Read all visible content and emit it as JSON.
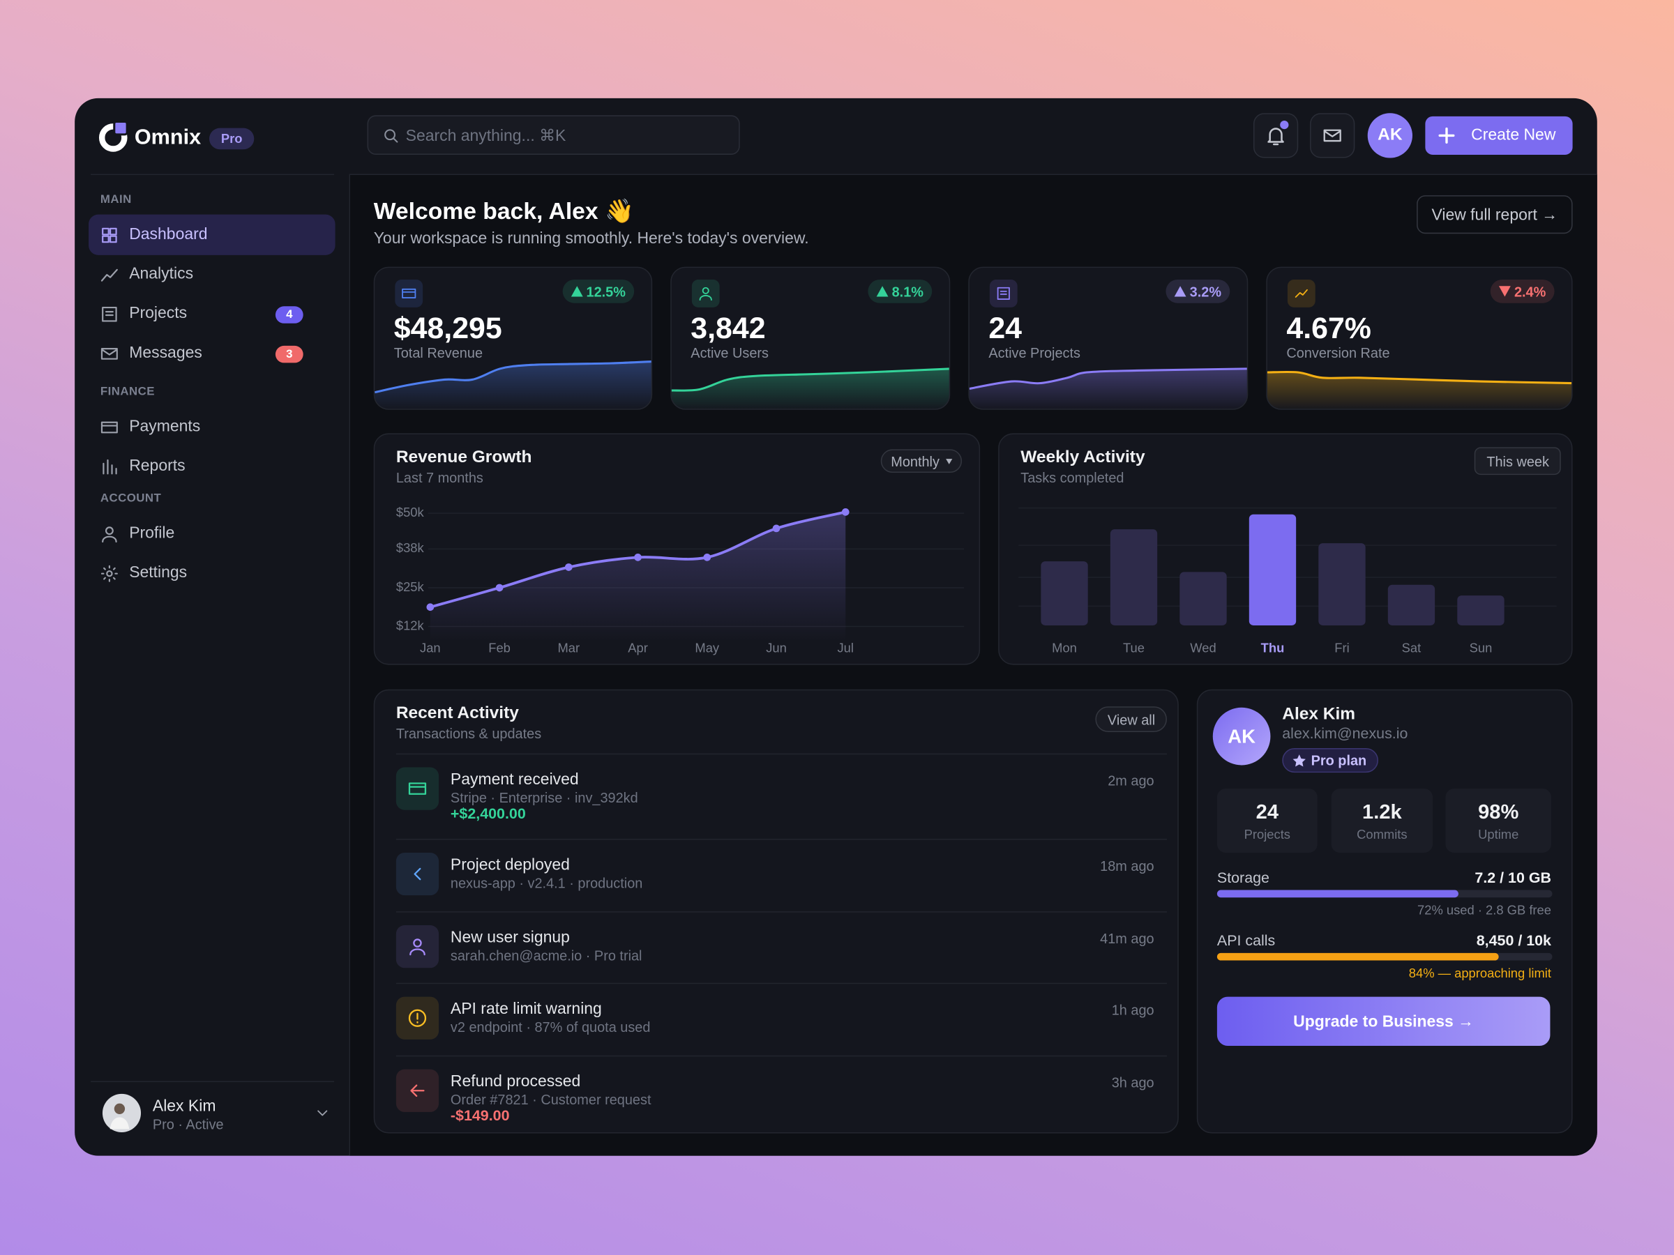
{
  "sidebar": {
    "brand": "Omnix",
    "plan_badge": "Pro",
    "sections": [
      {
        "title": "MAIN",
        "items": [
          {
            "label": "Dashboard",
            "active": true
          },
          {
            "label": "Analytics"
          },
          {
            "label": "Projects",
            "badge": "4",
            "badge_color": "#6d5ef0"
          },
          {
            "label": "Messages",
            "badge": "3",
            "badge_color": "#f06a6a"
          }
        ]
      },
      {
        "title": "FINANCE",
        "items": [
          {
            "label": "Payments"
          },
          {
            "label": "Reports"
          }
        ]
      },
      {
        "title": "ACCOUNT",
        "items": [
          {
            "label": "Profile"
          },
          {
            "label": "Settings"
          }
        ]
      }
    ],
    "user": {
      "name": "Alex Kim",
      "status": "Pro · Active"
    }
  },
  "topbar": {
    "search_placeholder": "Search anything... ⌘K",
    "avatar": "AK",
    "create_button": "Create New"
  },
  "header": {
    "title": "Welcome back, Alex 👋",
    "subtitle": "Your workspace is running smoothly. Here's today's overview.",
    "report_button": "View full report →"
  },
  "kpis": [
    {
      "value": "$48,295",
      "label": "Total Revenue",
      "change": "12.5%",
      "trend": "up",
      "color": "#4f7ff0",
      "change_color": "#34d399"
    },
    {
      "value": "3,842",
      "label": "Active Users",
      "change": "8.1%",
      "trend": "up",
      "color": "#34d399",
      "change_color": "#34d399"
    },
    {
      "value": "24",
      "label": "Active Projects",
      "change": "3.2%",
      "trend": "up",
      "color": "#8b7cf6",
      "change_color": "#a99cf7"
    },
    {
      "value": "4.67%",
      "label": "Conversion Rate",
      "change": "2.4%",
      "trend": "down",
      "color": "#f5b014",
      "change_color": "#f87171"
    }
  ],
  "chart_data": [
    {
      "type": "line",
      "title": "Revenue Growth",
      "subtitle": "Last 7 months",
      "period": "Monthly",
      "categories": [
        "Jan",
        "Feb",
        "Mar",
        "Apr",
        "May",
        "Jun",
        "Jul"
      ],
      "values": [
        18.5,
        25,
        31.9,
        35.2,
        35.2,
        44.9,
        50.4
      ],
      "color": "#8b7cf6",
      "ylim": [
        7,
        60
      ],
      "yticks": [
        {
          "value": 12,
          "label": "$12k"
        },
        {
          "value": 25,
          "label": "$25k"
        },
        {
          "value": 38,
          "label": "$38k"
        },
        {
          "value": 50,
          "label": "$50k"
        }
      ],
      "grid": true
    },
    {
      "type": "bar",
      "title": "Weekly Activity",
      "subtitle": "Tasks completed",
      "period": "This week",
      "categories": [
        "Mon",
        "Tue",
        "Wed",
        "Thu",
        "Fri",
        "Sat",
        "Sun"
      ],
      "values": [
        60,
        90,
        50,
        104,
        77,
        38,
        28
      ],
      "ylim": [
        0,
        110
      ],
      "color": "#2e2b4a",
      "highlight": "Thu",
      "highlight_color": "#7c6cf0"
    }
  ],
  "recent_activity": {
    "title": "Recent Activity",
    "subtitle": "Transactions & updates",
    "view_all": "View all",
    "items": [
      {
        "title": "Payment received",
        "detail": "Stripe · Enterprise · inv_392kd",
        "time": "2m ago",
        "amount": "+$2,400.00",
        "amount_color": "#34d399",
        "color": "#34d399"
      },
      {
        "title": "Project deployed",
        "detail": "nexus-app · v2.4.1 · production",
        "time": "18m ago",
        "color": "#60a5fa"
      },
      {
        "title": "New user signup",
        "detail": "sarah.chen@acme.io · Pro trial",
        "time": "41m ago",
        "color": "#a78bfa"
      },
      {
        "title": "API rate limit warning",
        "detail": "v2 endpoint · 87% of quota used",
        "time": "1h ago",
        "color": "#fbbf24"
      },
      {
        "title": "Refund processed",
        "detail": "Order #7821 · Customer request",
        "time": "3h ago",
        "amount": "-$149.00",
        "amount_color": "#f87171",
        "color": "#f87171"
      }
    ]
  },
  "profile": {
    "avatar": "AK",
    "name": "Alex Kim",
    "email": "alex.kim@nexus.io",
    "plan": "Pro plan",
    "stats": [
      {
        "value": "24",
        "label": "Projects"
      },
      {
        "value": "1.2k",
        "label": "Commits"
      },
      {
        "value": "98%",
        "label": "Uptime"
      }
    ],
    "usage": [
      {
        "label": "Storage",
        "value": "7.2 / 10 GB",
        "note": "72% used · 2.8 GB free",
        "fill": 72,
        "color": "#7c6cf0",
        "note_color": "#767b88"
      },
      {
        "label": "API calls",
        "value": "8,450 / 10k",
        "note": "84% — approaching limit",
        "fill": 84,
        "color": "#f5a014",
        "note_color": "#f5b014"
      }
    ],
    "upgrade_button": "Upgrade to Business →"
  }
}
